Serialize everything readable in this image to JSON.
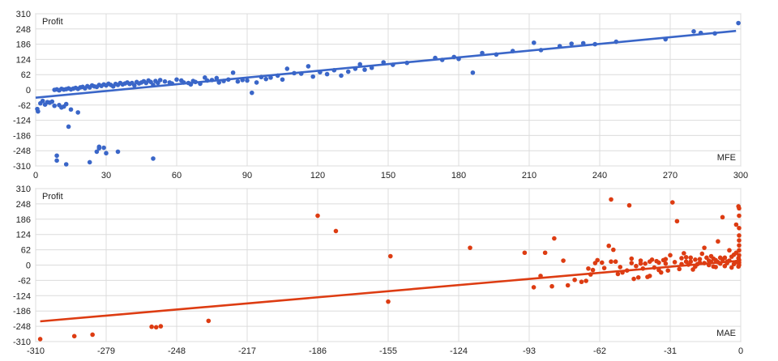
{
  "chart_data": [
    {
      "type": "scatter",
      "title": "",
      "ylabel": "Profit",
      "xlabel": "MFE",
      "xlim": [
        0,
        300
      ],
      "ylim": [
        -310,
        310
      ],
      "x_ticks": [
        "0",
        "30",
        "60",
        "90",
        "120",
        "150",
        "180",
        "210",
        "240",
        "270",
        "300"
      ],
      "y_ticks": [
        "310",
        "248",
        "186",
        "124",
        "62",
        "0",
        "-62",
        "-124",
        "-186",
        "-248",
        "-310"
      ],
      "grid": true,
      "color": "#3a66c8",
      "trendline": {
        "x": [
          0,
          298
        ],
        "y": [
          -32,
          240
        ]
      },
      "points": [
        [
          0,
          -78
        ],
        [
          1,
          -88
        ],
        [
          2,
          -55
        ],
        [
          3,
          -45
        ],
        [
          4,
          -60
        ],
        [
          5,
          -50
        ],
        [
          6,
          -52
        ],
        [
          7,
          -48
        ],
        [
          8,
          -65
        ],
        [
          9,
          -268
        ],
        [
          9,
          -288
        ],
        [
          10,
          -62
        ],
        [
          11,
          -72
        ],
        [
          12,
          -68
        ],
        [
          13,
          -58
        ],
        [
          13,
          -305
        ],
        [
          14,
          -150
        ],
        [
          15,
          -80
        ],
        [
          8,
          0
        ],
        [
          9,
          2
        ],
        [
          10,
          -2
        ],
        [
          11,
          4
        ],
        [
          12,
          1
        ],
        [
          13,
          3
        ],
        [
          14,
          6
        ],
        [
          15,
          2
        ],
        [
          16,
          5
        ],
        [
          17,
          8
        ],
        [
          18,
          4
        ],
        [
          19,
          10
        ],
        [
          20,
          12
        ],
        [
          21,
          6
        ],
        [
          22,
          15
        ],
        [
          23,
          10
        ],
        [
          24,
          18
        ],
        [
          25,
          14
        ],
        [
          26,
          12
        ],
        [
          27,
          20
        ],
        [
          28,
          16
        ],
        [
          29,
          22
        ],
        [
          30,
          18
        ],
        [
          31,
          25
        ],
        [
          32,
          20
        ],
        [
          33,
          14
        ],
        [
          34,
          24
        ],
        [
          35,
          20
        ],
        [
          36,
          28
        ],
        [
          37,
          22
        ],
        [
          38,
          26
        ],
        [
          39,
          30
        ],
        [
          40,
          24
        ],
        [
          41,
          28
        ],
        [
          42,
          18
        ],
        [
          43,
          32
        ],
        [
          44,
          26
        ],
        [
          45,
          30
        ],
        [
          46,
          35
        ],
        [
          47,
          28
        ],
        [
          48,
          38
        ],
        [
          49,
          32
        ],
        [
          50,
          20
        ],
        [
          51,
          36
        ],
        [
          52,
          28
        ],
        [
          53,
          40
        ],
        [
          55,
          34
        ],
        [
          57,
          30
        ],
        [
          58,
          26
        ],
        [
          60,
          42
        ],
        [
          62,
          38
        ],
        [
          63,
          30
        ],
        [
          65,
          28
        ],
        [
          66,
          22
        ],
        [
          67,
          36
        ],
        [
          68,
          32
        ],
        [
          70,
          25
        ],
        [
          72,
          50
        ],
        [
          73,
          38
        ],
        [
          75,
          40
        ],
        [
          77,
          48
        ],
        [
          78,
          30
        ],
        [
          80,
          36
        ],
        [
          82,
          42
        ],
        [
          84,
          70
        ],
        [
          86,
          34
        ],
        [
          88,
          40
        ],
        [
          90,
          38
        ],
        [
          92,
          -12
        ],
        [
          94,
          30
        ],
        [
          96,
          52
        ],
        [
          98,
          44
        ],
        [
          100,
          50
        ],
        [
          103,
          58
        ],
        [
          105,
          42
        ],
        [
          107,
          86
        ],
        [
          110,
          68
        ],
        [
          113,
          66
        ],
        [
          116,
          96
        ],
        [
          118,
          54
        ],
        [
          121,
          72
        ],
        [
          124,
          64
        ],
        [
          127,
          80
        ],
        [
          130,
          58
        ],
        [
          133,
          74
        ],
        [
          136,
          86
        ],
        [
          138,
          104
        ],
        [
          140,
          82
        ],
        [
          143,
          90
        ],
        [
          148,
          112
        ],
        [
          152,
          102
        ],
        [
          158,
          110
        ],
        [
          170,
          130
        ],
        [
          173,
          122
        ],
        [
          178,
          134
        ],
        [
          180,
          126
        ],
        [
          186,
          70
        ],
        [
          190,
          150
        ],
        [
          196,
          144
        ],
        [
          203,
          158
        ],
        [
          212,
          192
        ],
        [
          215,
          162
        ],
        [
          223,
          178
        ],
        [
          228,
          188
        ],
        [
          233,
          190
        ],
        [
          238,
          186
        ],
        [
          247,
          196
        ],
        [
          268,
          206
        ],
        [
          280,
          238
        ],
        [
          283,
          232
        ],
        [
          289,
          230
        ],
        [
          299,
          272
        ],
        [
          18,
          -92
        ],
        [
          23,
          -295
        ],
        [
          26,
          -252
        ],
        [
          27,
          -232
        ],
        [
          29,
          -236
        ],
        [
          30,
          -258
        ],
        [
          35,
          -252
        ],
        [
          50,
          -280
        ],
        [
          27,
          -238
        ]
      ]
    },
    {
      "type": "scatter",
      "title": "",
      "ylabel": "Profit",
      "xlabel": "MAE",
      "xlim": [
        -310,
        0
      ],
      "ylim": [
        -310,
        310
      ],
      "x_ticks": [
        "-310",
        "-279",
        "-248",
        "-217",
        "-186",
        "-155",
        "-124",
        "-93",
        "-62",
        "-31",
        "0"
      ],
      "y_ticks": [
        "310",
        "248",
        "186",
        "124",
        "62",
        "0",
        "-62",
        "-124",
        "-186",
        "-248",
        "-310"
      ],
      "grid": true,
      "color": "#dd3c12",
      "trendline": {
        "x": [
          -308,
          0
        ],
        "y": [
          -228,
          18
        ]
      },
      "points": [
        [
          -308,
          -300
        ],
        [
          -293,
          -288
        ],
        [
          -285,
          -282
        ],
        [
          -259,
          -250
        ],
        [
          -257,
          -252
        ],
        [
          -255,
          -248
        ],
        [
          -234,
          -226
        ],
        [
          -186,
          200
        ],
        [
          -178,
          138
        ],
        [
          -154,
          36
        ],
        [
          -155,
          -148
        ],
        [
          -119,
          70
        ],
        [
          -95,
          50
        ],
        [
          -86,
          50
        ],
        [
          -91,
          -90
        ],
        [
          -82,
          108
        ],
        [
          -83,
          -86
        ],
        [
          -76,
          -82
        ],
        [
          -70,
          -68
        ],
        [
          -68,
          -64
        ],
        [
          -66,
          -38
        ],
        [
          -65,
          -20
        ],
        [
          -64,
          8
        ],
        [
          -63,
          20
        ],
        [
          -60,
          -12
        ],
        [
          -58,
          78
        ],
        [
          -57,
          266
        ],
        [
          -56,
          62
        ],
        [
          -55,
          14
        ],
        [
          -54,
          -36
        ],
        [
          -52,
          -30
        ],
        [
          -50,
          -22
        ],
        [
          -49,
          242
        ],
        [
          -48,
          8
        ],
        [
          -47,
          -56
        ],
        [
          -46,
          -4
        ],
        [
          -45,
          -50
        ],
        [
          -44,
          18
        ],
        [
          -43,
          -14
        ],
        [
          -42,
          6
        ],
        [
          -41,
          -48
        ],
        [
          -40,
          -44
        ],
        [
          -39,
          22
        ],
        [
          -38,
          -10
        ],
        [
          -37,
          16
        ],
        [
          -36,
          10
        ],
        [
          -35,
          -30
        ],
        [
          -34,
          20
        ],
        [
          -33,
          6
        ],
        [
          -32,
          -22
        ],
        [
          -31,
          40
        ],
        [
          -30,
          254
        ],
        [
          -28,
          178
        ],
        [
          -26,
          28
        ],
        [
          -25,
          48
        ],
        [
          -24,
          14
        ],
        [
          -23,
          2
        ],
        [
          -22,
          30
        ],
        [
          -21,
          -18
        ],
        [
          -20,
          22
        ],
        [
          -19,
          4
        ],
        [
          -18,
          10
        ],
        [
          -17,
          46
        ],
        [
          -16,
          70
        ],
        [
          -15,
          30
        ],
        [
          -14,
          0
        ],
        [
          -13,
          12
        ],
        [
          -12,
          -6
        ],
        [
          -11,
          20
        ],
        [
          -10,
          96
        ],
        [
          -9,
          6
        ],
        [
          -8,
          194
        ],
        [
          -7,
          30
        ],
        [
          -6,
          14
        ],
        [
          -5,
          60
        ],
        [
          -4,
          -10
        ],
        [
          -3,
          42
        ],
        [
          -2,
          164
        ],
        [
          -1,
          238
        ],
        [
          0,
          230
        ],
        [
          0,
          200
        ],
        [
          0,
          150
        ],
        [
          0,
          120
        ],
        [
          0,
          100
        ],
        [
          0,
          80
        ],
        [
          0,
          60
        ],
        [
          0,
          40
        ],
        [
          0,
          20
        ],
        [
          0,
          10
        ],
        [
          0,
          0
        ],
        [
          -1,
          28
        ],
        [
          -1,
          -6
        ],
        [
          -2,
          50
        ],
        [
          -2,
          12
        ],
        [
          -3,
          4
        ],
        [
          -4,
          34
        ],
        [
          -5,
          18
        ],
        [
          -6,
          8
        ],
        [
          -7,
          -4
        ],
        [
          -8,
          22
        ],
        [
          -9,
          30
        ],
        [
          -10,
          12
        ],
        [
          -11,
          -8
        ],
        [
          -12,
          26
        ],
        [
          -13,
          36
        ],
        [
          -14,
          18
        ],
        [
          -16,
          8
        ],
        [
          -18,
          24
        ],
        [
          -20,
          -6
        ],
        [
          -22,
          14
        ],
        [
          -24,
          32
        ],
        [
          -26,
          4
        ],
        [
          -27,
          -16
        ],
        [
          -29,
          12
        ],
        [
          -33,
          24
        ],
        [
          -36,
          -20
        ],
        [
          -40,
          14
        ],
        [
          -44,
          6
        ],
        [
          -48,
          26
        ],
        [
          -53,
          -8
        ],
        [
          -57,
          14
        ],
        [
          -61,
          10
        ],
        [
          -67,
          -14
        ],
        [
          -73,
          -60
        ],
        [
          -78,
          18
        ],
        [
          -88,
          -44
        ]
      ]
    }
  ]
}
